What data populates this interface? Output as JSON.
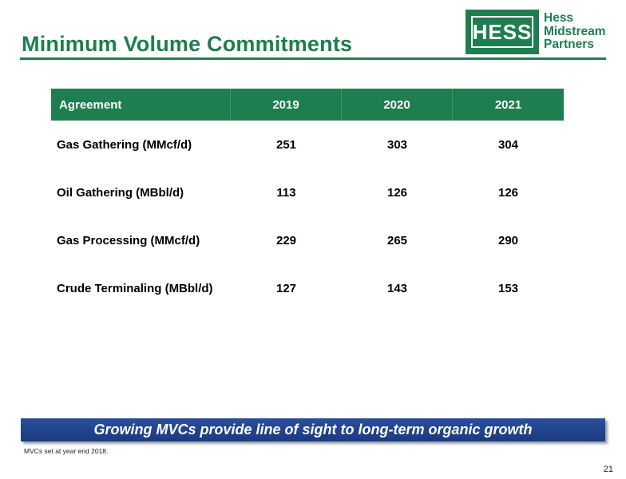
{
  "title": "Minimum Volume Commitments",
  "logo": {
    "mark": "HESS",
    "lines": [
      "Hess",
      "Midstream",
      "Partners"
    ]
  },
  "table": {
    "headers": [
      "Agreement",
      "2019",
      "2020",
      "2021"
    ],
    "rows": [
      [
        "Gas Gathering (MMcf/d)",
        "251",
        "303",
        "304"
      ],
      [
        "Oil Gathering (MBbl/d)",
        "113",
        "126",
        "126"
      ],
      [
        "Gas Processing (MMcf/d)",
        "229",
        "265",
        "290"
      ],
      [
        "Crude Terminaling (MBbl/d)",
        "127",
        "143",
        "153"
      ]
    ]
  },
  "banner": "Growing MVCs provide line of sight to long-term organic growth",
  "footnote": "MVCs set at year end 2018.",
  "page_number": "21",
  "colors": {
    "brand_green": "#1e7e4f",
    "banner_blue": "#1b3a80"
  }
}
